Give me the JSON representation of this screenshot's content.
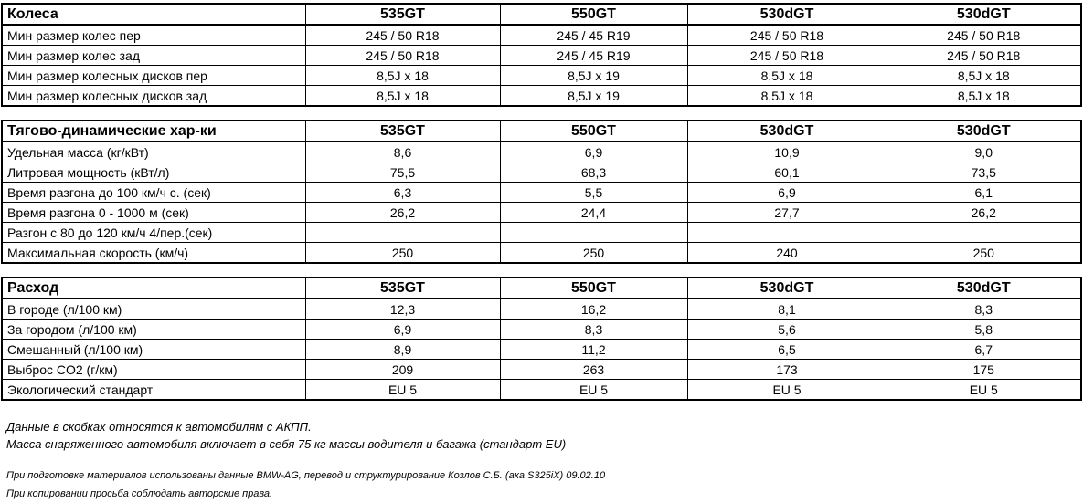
{
  "page": {
    "background": "#ffffff",
    "text_color": "#000000",
    "border_color": "#000000"
  },
  "tables": [
    {
      "name": "wheels-table",
      "title": "Колеса",
      "columns": [
        "535GT",
        "550GT",
        "530dGT",
        "530dGT"
      ],
      "rows": [
        {
          "label": "Мин размер колес пер",
          "values": [
            "245 / 50 R18",
            "245 / 45 R19",
            "245 / 50 R18",
            "245 / 50 R18"
          ]
        },
        {
          "label": "Мин размер колес зад",
          "values": [
            "245 / 50 R18",
            "245 / 45 R19",
            "245 / 50 R18",
            "245 / 50 R18"
          ]
        },
        {
          "label": "Мин размер колесных дисков пер",
          "values": [
            "8,5J x 18",
            "8,5J x 19",
            "8,5J x 18",
            "8,5J x 18"
          ]
        },
        {
          "label": "Мин размер колесных дисков зад",
          "values": [
            "8,5J x 18",
            "8,5J x 19",
            "8,5J x 18",
            "8,5J x 18"
          ]
        }
      ]
    },
    {
      "name": "dynamics-table",
      "title": "Тягово-динамические хар-ки",
      "columns": [
        "535GT",
        "550GT",
        "530dGT",
        "530dGT"
      ],
      "rows": [
        {
          "label": "Удельная масса (кг/кВт)",
          "values": [
            "8,6",
            "6,9",
            "10,9",
            "9,0"
          ]
        },
        {
          "label": "Литровая мощность (кВт/л)",
          "values": [
            "75,5",
            "68,3",
            "60,1",
            "73,5"
          ]
        },
        {
          "label": "Время  разгона до 100 км/ч с. (сек)",
          "values": [
            "6,3",
            "5,5",
            "6,9",
            "6,1"
          ]
        },
        {
          "label": "Время разгона 0 - 1000 м (сек)",
          "values": [
            "26,2",
            "24,4",
            "27,7",
            "26,2"
          ]
        },
        {
          "label": "Разгон с 80 до 120 км/ч  4/пер.(сек)",
          "values": [
            "",
            "",
            "",
            ""
          ]
        },
        {
          "label": "Максимальная скорость (км/ч)",
          "values": [
            "250",
            "250",
            "240",
            "250"
          ]
        }
      ]
    },
    {
      "name": "consumption-table",
      "title": "Расход",
      "columns": [
        "535GT",
        "550GT",
        "530dGT",
        "530dGT"
      ],
      "rows": [
        {
          "label": "В городе (л/100 км)",
          "values": [
            "12,3",
            "16,2",
            "8,1",
            "8,3"
          ]
        },
        {
          "label": "За городом (л/100 км)",
          "values": [
            "6,9",
            "8,3",
            "5,6",
            "5,8"
          ]
        },
        {
          "label": "Смешанный (л/100 км)",
          "values": [
            "8,9",
            "11,2",
            "6,5",
            "6,7"
          ]
        },
        {
          "label": "Выброс CO2 (г/км)",
          "values": [
            "209",
            "263",
            "173",
            "175"
          ]
        },
        {
          "label": "Экологический стандарт",
          "values": [
            "EU 5",
            "EU 5",
            "EU 5",
            "EU 5"
          ]
        }
      ]
    }
  ],
  "notes": [
    "Данные в скобках относятся к автомобилям с АКПП.",
    "Масса снаряженного автомобиля включает в себя 75 кг массы водителя и багажа (стандарт EU)"
  ],
  "credits": [
    "При подготовке материалов использованы данные BMW-AG, перевод и структурирование Козлов С.Б. (ака S325iX) 09.02.10",
    "При копировании просьба соблюдать авторские права."
  ]
}
